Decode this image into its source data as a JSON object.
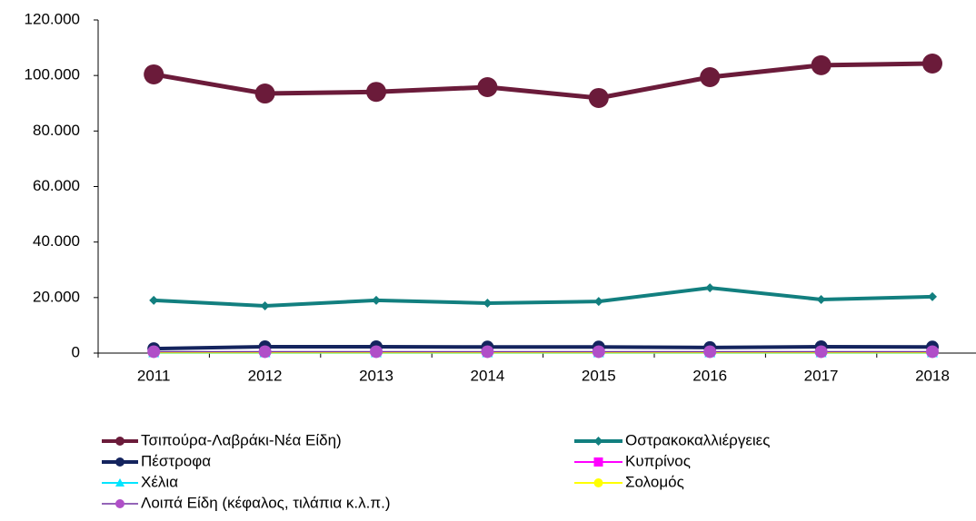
{
  "chart_data": {
    "type": "line",
    "categories": [
      "2011",
      "2012",
      "2013",
      "2014",
      "2015",
      "2016",
      "2017",
      "2018"
    ],
    "series": [
      {
        "name": "Τσιπούρα-Λαβράκι-Νέα Είδη)",
        "color": "#6b1b3a",
        "marker": "circle",
        "values": [
          100400,
          93500,
          94100,
          95800,
          91900,
          99400,
          103700,
          104300
        ]
      },
      {
        "name": "Οστρακοκαλλιέργειες",
        "color": "#127f7f",
        "marker": "diamond",
        "values": [
          19000,
          17000,
          19000,
          18000,
          18600,
          23500,
          19300,
          20300
        ]
      },
      {
        "name": "Πέστροφα",
        "color": "#14245e",
        "marker": "circle",
        "values": [
          1600,
          2300,
          2300,
          2200,
          2200,
          2000,
          2300,
          2200
        ]
      },
      {
        "name": "Κυπρίνος",
        "color": "#ff00ff",
        "marker": "square",
        "values": [
          300,
          300,
          300,
          300,
          300,
          300,
          300,
          300
        ]
      },
      {
        "name": "Χέλια",
        "color": "#00e5ff",
        "marker": "triangle",
        "values": [
          100,
          100,
          100,
          100,
          100,
          100,
          100,
          100
        ]
      },
      {
        "name": "Σολομός",
        "color": "#ffff00",
        "marker": "circle",
        "values": [
          200,
          200,
          200,
          200,
          200,
          200,
          200,
          200
        ]
      },
      {
        "name": "Λοιπά Είδη (κέφαλος, τιλάπια κ.λ.π.)",
        "color": "#b04fc8",
        "marker": "circle",
        "values": [
          500,
          500,
          500,
          500,
          500,
          500,
          500,
          500
        ]
      }
    ],
    "ylim": [
      0,
      120000
    ],
    "yticks": [
      0,
      {
        "value": 20000,
        "label": "20.000"
      },
      {
        "value": 40000,
        "label": "40.000"
      },
      {
        "value": 60000,
        "label": "60.000"
      },
      {
        "value": 80000,
        "label": "80.000"
      },
      {
        "value": 100000,
        "label": "100.000"
      },
      {
        "value": 120000,
        "label": "120.000"
      }
    ],
    "grid": false,
    "legend": "bottom"
  }
}
